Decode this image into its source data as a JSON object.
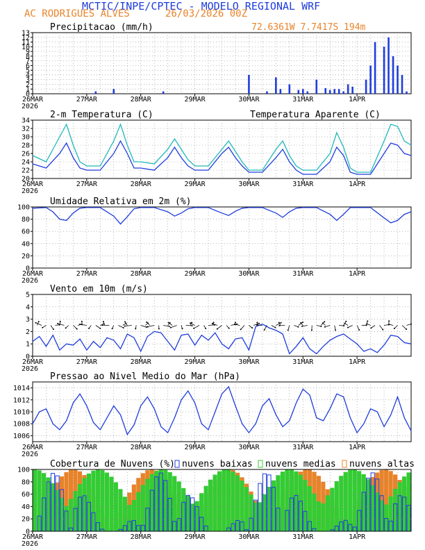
{
  "header": {
    "title": "MCTIC/INPE/CPTEC - MODELO REGIONAL WRF",
    "station": "AC RODRIGUES ALVES",
    "run": "26/03/2026 00Z",
    "coords": "72.6361W 7.7417S 194m"
  },
  "colors": {
    "title": "#1e3cdc",
    "orange": "#e8832a",
    "blue": "#1e3cdc",
    "cyan": "#20b8b8",
    "green": "#33cc33",
    "frame": "#000000"
  },
  "x_axis": {
    "labels": [
      "26MAR",
      "27MAR",
      "28MAR",
      "29MAR",
      "30MAR",
      "31MAR",
      "1APR"
    ],
    "year": "2026",
    "range_hours": [
      0,
      168
    ]
  },
  "chart_data": [
    {
      "type": "bar",
      "title": "Precipitacao (mm/h)",
      "ylim": [
        0,
        13
      ],
      "yticks": [
        0,
        1,
        2,
        3,
        4,
        5,
        6,
        7,
        8,
        9,
        10,
        11,
        12,
        13
      ],
      "grid": true,
      "series": [
        {
          "color": "#1e3cdc",
          "x_hours": [
            28,
            36,
            58,
            96,
            104,
            108,
            110,
            114,
            118,
            120,
            122,
            126,
            130,
            132,
            134,
            136,
            138,
            140,
            142,
            148,
            150,
            152,
            156,
            158,
            160,
            162,
            164,
            166
          ],
          "values": [
            0.5,
            1,
            0.5,
            4,
            0.5,
            3.5,
            1,
            2,
            0.8,
            1,
            0.5,
            3,
            1.2,
            0.8,
            1,
            1,
            0.5,
            2,
            1.5,
            3,
            6,
            11,
            10,
            12,
            8,
            6,
            4,
            0.5
          ]
        }
      ]
    },
    {
      "type": "line",
      "title": "2-m Temperatura (C)",
      "legend_label": "Temperatura Aparente (C)",
      "ylim": [
        20,
        34
      ],
      "yticks": [
        20,
        22,
        24,
        26,
        28,
        30,
        32,
        34
      ],
      "grid": true,
      "series": [
        {
          "name": "2-m Temperatura (C)",
          "color": "#1e3cdc",
          "x_hours": [
            0,
            6,
            12,
            15,
            18,
            21,
            24,
            30,
            36,
            39,
            42,
            45,
            48,
            54,
            60,
            63,
            66,
            69,
            72,
            78,
            84,
            87,
            90,
            93,
            96,
            102,
            108,
            111,
            114,
            117,
            120,
            126,
            132,
            135,
            138,
            141,
            144,
            150,
            156,
            159,
            162,
            165,
            168
          ],
          "values": [
            23.5,
            22.5,
            26,
            28.5,
            25,
            22.5,
            22,
            22,
            26,
            29,
            26,
            22.5,
            22.5,
            22,
            25,
            27.5,
            25,
            23,
            22,
            22,
            26,
            27.5,
            25,
            23,
            21.5,
            21.5,
            25,
            27,
            24,
            22,
            21,
            21,
            24,
            27.5,
            25.5,
            21.5,
            21,
            21,
            26,
            28.5,
            28,
            26,
            25.5
          ]
        },
        {
          "name": "Temperatura Aparente (C)",
          "color": "#20b8b8",
          "x_hours": [
            0,
            6,
            12,
            15,
            18,
            21,
            24,
            30,
            36,
            39,
            42,
            45,
            48,
            54,
            60,
            63,
            66,
            69,
            72,
            78,
            84,
            87,
            90,
            93,
            96,
            102,
            108,
            111,
            114,
            117,
            120,
            126,
            132,
            135,
            138,
            141,
            144,
            150,
            156,
            159,
            162,
            165,
            168
          ],
          "values": [
            25.5,
            24,
            30,
            33,
            28,
            24,
            23,
            23,
            29,
            33,
            28,
            24,
            24,
            23.5,
            27,
            29.5,
            27,
            24.5,
            23,
            23,
            27,
            29,
            26.5,
            24,
            22,
            22,
            27,
            29,
            25.5,
            23,
            22,
            22,
            26,
            31,
            27.5,
            22.5,
            21.5,
            21.5,
            29,
            33,
            32.5,
            29,
            28
          ]
        }
      ]
    },
    {
      "type": "line",
      "title": "Umidade Relativa em 2m (%)",
      "ylim": [
        0,
        100
      ],
      "yticks": [
        0,
        20,
        40,
        60,
        80,
        100
      ],
      "grid": true,
      "series": [
        {
          "color": "#1e3cdc",
          "x_hours": [
            0,
            6,
            9,
            12,
            15,
            18,
            21,
            24,
            30,
            36,
            39,
            42,
            45,
            48,
            54,
            60,
            63,
            66,
            69,
            72,
            78,
            84,
            87,
            90,
            93,
            96,
            102,
            108,
            111,
            114,
            117,
            120,
            126,
            132,
            135,
            138,
            141,
            144,
            150,
            156,
            159,
            162,
            165,
            168
          ],
          "values": [
            98,
            99,
            92,
            80,
            78,
            90,
            98,
            99,
            99,
            85,
            72,
            84,
            97,
            99,
            99,
            92,
            85,
            90,
            97,
            99,
            99,
            90,
            86,
            93,
            98,
            99,
            99,
            90,
            83,
            92,
            98,
            99,
            99,
            88,
            78,
            88,
            99,
            99,
            99,
            82,
            74,
            78,
            88,
            92
          ]
        }
      ]
    },
    {
      "type": "line",
      "title": "Vento em 10m (m/s)",
      "ylim": [
        0,
        5
      ],
      "yticks": [
        0,
        1,
        2,
        3,
        4,
        5
      ],
      "grid": true,
      "series": [
        {
          "color": "#1e3cdc",
          "x_hours": [
            0,
            3,
            6,
            9,
            12,
            15,
            18,
            21,
            24,
            27,
            30,
            33,
            36,
            39,
            42,
            45,
            48,
            51,
            54,
            57,
            60,
            63,
            66,
            69,
            72,
            75,
            78,
            81,
            84,
            87,
            90,
            93,
            96,
            99,
            102,
            105,
            108,
            111,
            114,
            117,
            120,
            123,
            126,
            129,
            132,
            135,
            138,
            141,
            144,
            147,
            150,
            153,
            156,
            159,
            162,
            165,
            168
          ],
          "values": [
            1.2,
            1.6,
            0.8,
            1.7,
            0.5,
            1.0,
            0.9,
            1.4,
            0.5,
            1.2,
            0.7,
            1.5,
            1.3,
            0.6,
            1.8,
            1.5,
            0.4,
            1.6,
            2.0,
            1.9,
            1.2,
            0.5,
            1.7,
            1.8,
            0.9,
            1.7,
            1.3,
            1.9,
            1.0,
            0.6,
            1.4,
            1.5,
            0.5,
            2.4,
            2.6,
            2.3,
            2.1,
            1.8,
            0.2,
            0.8,
            1.5,
            0.6,
            0.2,
            0.8,
            1.3,
            1.6,
            1.8,
            1.4,
            1.0,
            0.4,
            0.6,
            0.3,
            0.9,
            1.7,
            1.6,
            1.1,
            1.0
          ]
        }
      ],
      "wind_barb_level": 2.5
    },
    {
      "type": "line",
      "title": "Pressao ao Nivel Medio do Mar (hPa)",
      "ylim": [
        1005,
        1015
      ],
      "yticks": [
        1006,
        1008,
        1010,
        1012,
        1014
      ],
      "grid": true,
      "series": [
        {
          "color": "#1e3cdc",
          "x_hours": [
            0,
            3,
            6,
            9,
            12,
            15,
            18,
            21,
            24,
            27,
            30,
            33,
            36,
            39,
            42,
            45,
            48,
            51,
            54,
            57,
            60,
            63,
            66,
            69,
            72,
            75,
            78,
            81,
            84,
            87,
            90,
            93,
            96,
            99,
            102,
            105,
            108,
            111,
            114,
            117,
            120,
            123,
            126,
            129,
            132,
            135,
            138,
            141,
            144,
            147,
            150,
            153,
            156,
            159,
            162,
            165,
            168
          ],
          "values": [
            1008,
            1010,
            1010.5,
            1008,
            1007,
            1008.5,
            1011.5,
            1013,
            1011,
            1008.2,
            1007,
            1009,
            1011,
            1009.5,
            1006.2,
            1007.8,
            1011,
            1012.5,
            1010.5,
            1007.5,
            1006.5,
            1009,
            1012,
            1013.5,
            1011.5,
            1008,
            1007,
            1010,
            1013,
            1014.2,
            1011,
            1008,
            1006.5,
            1008,
            1011,
            1012.2,
            1009.5,
            1007.5,
            1008.5,
            1011.5,
            1013.8,
            1012.8,
            1009,
            1008.5,
            1010.5,
            1013,
            1012.5,
            1009,
            1006.5,
            1008,
            1010.5,
            1010,
            1007.5,
            1009.5,
            1012.5,
            1009,
            1006.8
          ]
        }
      ]
    },
    {
      "type": "bar",
      "title": "Cobertura de Nuvens (%)",
      "legend": [
        "nuvens baixas",
        "nuvens medias",
        "nuvens altas"
      ],
      "ylim": [
        0,
        100
      ],
      "yticks": [
        0,
        20,
        40,
        60,
        80,
        100
      ],
      "grid": true,
      "note": "stacked hourly cloud-cover bars: high (orange) behind medium (green) behind low (blue outline)"
    }
  ]
}
